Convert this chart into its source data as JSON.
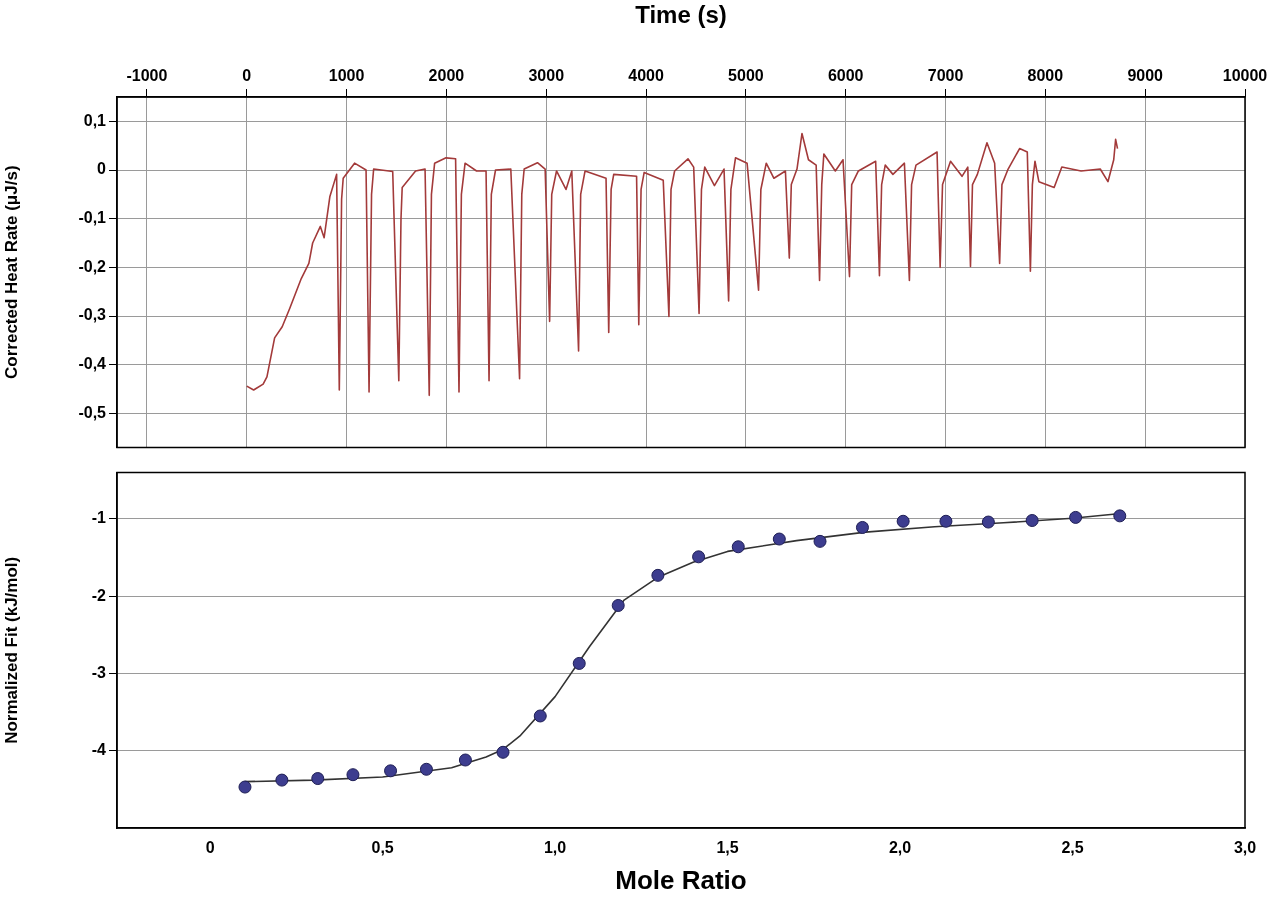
{
  "chart_data": [
    {
      "type": "line",
      "xlabel": "Time (s)",
      "ylabel": "Corrected Heat Rate (μJ/s)",
      "xlim": [
        -1300,
        10000
      ],
      "xticks": [
        -1000,
        0,
        1000,
        2000,
        3000,
        4000,
        5000,
        6000,
        7000,
        8000,
        9000,
        10000
      ],
      "ylim": [
        -0.57,
        0.15
      ],
      "yticks": [
        {
          "value": 0.1,
          "label": "0,1"
        },
        0,
        {
          "value": -0.1,
          "label": "-0,1"
        },
        {
          "value": -0.2,
          "label": "-0,2"
        },
        {
          "value": -0.3,
          "label": "-0,3"
        },
        {
          "value": -0.4,
          "label": "-0,4"
        },
        {
          "value": -0.5,
          "label": "-0,5"
        }
      ],
      "grid": true,
      "series": [
        {
          "color": "#a33a3a",
          "x": [
            0,
            69,
            164,
            202,
            279,
            355,
            431,
            546,
            622,
            660,
            737,
            775,
            832,
            900,
            927,
            950,
            966,
            1080,
            1195,
            1225,
            1250,
            1271,
            1462,
            1523,
            1545,
            1557,
            1691,
            1786,
            1828,
            1850,
            1882,
            1996,
            2092,
            2126,
            2150,
            2187,
            2302,
            2397,
            2427,
            2450,
            2492,
            2645,
            2733,
            2755,
            2779,
            2912,
            2989,
            3034,
            3055,
            3103,
            3198,
            3256,
            3324,
            3345,
            3389,
            3599,
            3626,
            3650,
            3676,
            3905,
            3927,
            3950,
            3981,
            4172,
            4229,
            4250,
            4286,
            4420,
            4477,
            4531,
            4555,
            4588,
            4685,
            4781,
            4827,
            4850,
            4896,
            5012,
            5127,
            5150,
            5204,
            5281,
            5396,
            5435,
            5455,
            5512,
            5562,
            5627,
            5704,
            5738,
            5760,
            5781,
            5896,
            5973,
            6038,
            6060,
            6127,
            6300,
            6338,
            6360,
            6396,
            6473,
            6588,
            6638,
            6660,
            6704,
            6915,
            6946,
            6970,
            7050,
            7165,
            7223,
            7250,
            7270,
            7319,
            7415,
            7492,
            7542,
            7565,
            7627,
            7742,
            7819,
            7850,
            7870,
            7896,
            7935,
            8088,
            8165,
            8358,
            8550,
            8627,
            8685,
            8704,
            8723
          ],
          "values": [
            -0.444,
            -0.452,
            -0.44,
            -0.425,
            -0.345,
            -0.322,
            -0.284,
            -0.223,
            -0.192,
            -0.15,
            -0.116,
            -0.139,
            -0.055,
            -0.009,
            -0.452,
            -0.06,
            -0.017,
            0.014,
            0,
            -0.456,
            -0.05,
            0.002,
            -0.003,
            -0.433,
            -0.1,
            -0.036,
            -0.002,
            0.002,
            -0.463,
            -0.05,
            0.014,
            0.025,
            0.023,
            -0.456,
            -0.05,
            0.014,
            -0.002,
            -0.002,
            -0.433,
            -0.05,
            0,
            0.002,
            -0.429,
            -0.05,
            0.002,
            0.015,
            0.002,
            -0.311,
            -0.05,
            -0.002,
            -0.04,
            -0.002,
            -0.372,
            -0.05,
            -0.002,
            -0.017,
            -0.334,
            -0.04,
            -0.009,
            -0.013,
            -0.318,
            -0.04,
            -0.005,
            -0.021,
            -0.301,
            -0.04,
            -0.002,
            0.023,
            0.006,
            -0.295,
            -0.04,
            0.006,
            -0.032,
            0.002,
            -0.269,
            -0.04,
            0.025,
            0.014,
            -0.247,
            -0.04,
            0.014,
            -0.017,
            -0.002,
            -0.181,
            -0.03,
            0.002,
            0.075,
            0.021,
            0.01,
            -0.227,
            -0.03,
            0.033,
            -0.002,
            0.021,
            -0.219,
            -0.03,
            -0.002,
            0.018,
            -0.217,
            -0.03,
            0.01,
            -0.009,
            0.014,
            -0.227,
            -0.03,
            0.01,
            0.037,
            -0.2,
            -0.03,
            0.018,
            -0.013,
            0.006,
            -0.198,
            -0.03,
            -0.009,
            0.056,
            0.014,
            -0.192,
            -0.03,
            0.002,
            0.044,
            0.037,
            -0.208,
            -0.03,
            0.018,
            -0.024,
            -0.036,
            0.006,
            -0.002,
            0.002,
            -0.024,
            0.021,
            0.063,
            0.044
          ]
        }
      ]
    },
    {
      "type": "scatter",
      "xlabel": "Mole Ratio",
      "ylabel": "Normalized Fit (kJ/mol)",
      "xlim": [
        -0.27,
        3.0
      ],
      "xticks": [
        0,
        {
          "value": 0.5,
          "label": "0,5"
        },
        {
          "value": 1.0,
          "label": "1,0"
        },
        {
          "value": 1.5,
          "label": "1,5"
        },
        {
          "value": 2.0,
          "label": "2,0"
        },
        {
          "value": 2.5,
          "label": "2,5"
        },
        {
          "value": 3.0,
          "label": "3,0"
        }
      ],
      "ylim": [
        -5.0,
        -0.4
      ],
      "yticks": [
        -1,
        -2,
        -3,
        -4
      ],
      "grid": "y",
      "marker": "circle",
      "series": [
        {
          "type": "line",
          "color": "#333333",
          "line_style": "solid",
          "marker": "none",
          "x": [
            0.1,
            0.3,
            0.5,
            0.7,
            0.8,
            0.85,
            0.9,
            1.0,
            1.1,
            1.2,
            1.3,
            1.4,
            1.5,
            1.7,
            1.9,
            2.1,
            2.3,
            2.5,
            2.64
          ],
          "values": [
            -4.4,
            -4.38,
            -4.34,
            -4.22,
            -4.08,
            -3.98,
            -3.8,
            -3.3,
            -2.65,
            -2.05,
            -1.75,
            -1.56,
            -1.42,
            -1.28,
            -1.17,
            -1.1,
            -1.05,
            -0.99,
            -0.93
          ]
        },
        {
          "color": "#3d3d8f",
          "x": [
            0.101,
            0.208,
            0.312,
            0.414,
            0.523,
            0.627,
            0.74,
            0.849,
            0.957,
            1.07,
            1.183,
            1.298,
            1.416,
            1.531,
            1.65,
            1.768,
            1.891,
            2.009,
            2.133,
            2.256,
            2.383,
            2.509,
            2.637
          ],
          "values": [
            -4.47,
            -4.38,
            -4.36,
            -4.31,
            -4.26,
            -4.24,
            -4.12,
            -4.02,
            -3.55,
            -2.87,
            -2.12,
            -1.73,
            -1.49,
            -1.36,
            -1.26,
            -1.29,
            -1.11,
            -1.03,
            -1.03,
            -1.04,
            -1.02,
            -0.98,
            -0.96
          ]
        }
      ]
    }
  ]
}
